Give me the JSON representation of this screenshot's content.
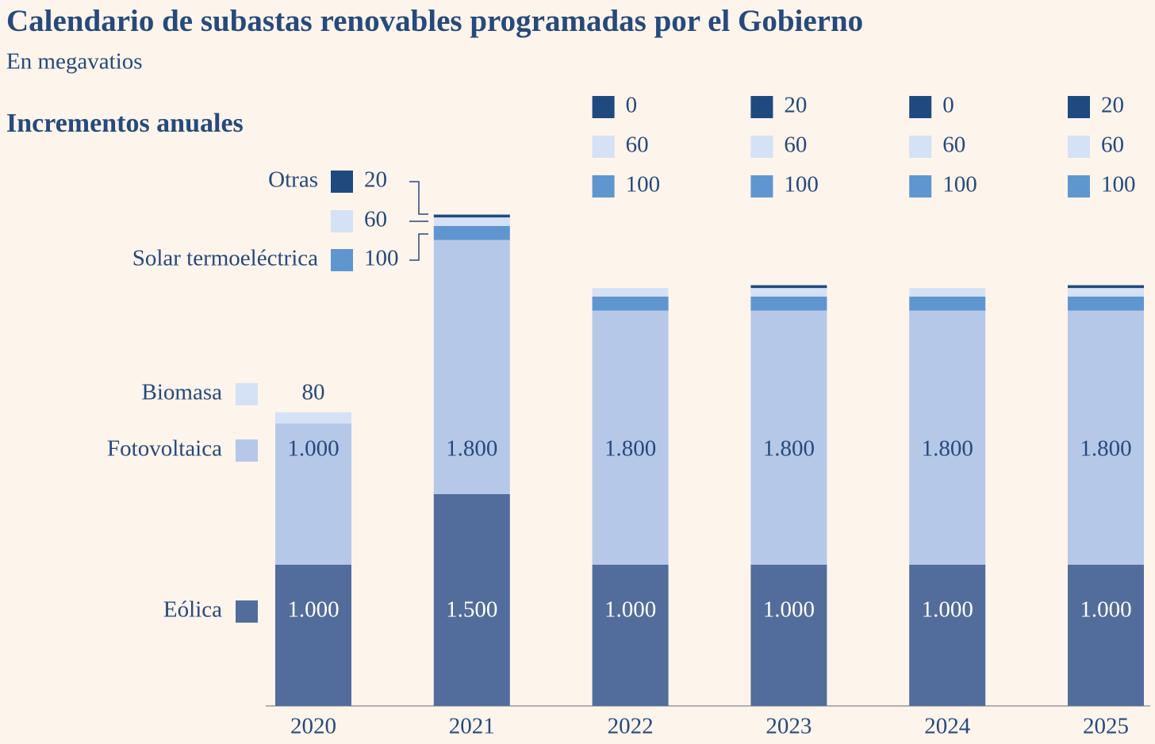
{
  "chart_data": {
    "type": "stacked_bar",
    "title": "Calendario de subastas renovables programadas por el Gobierno",
    "subtitle": "En megavatios",
    "section_label": "Incrementos anuales",
    "categories": [
      "2020",
      "2021",
      "2022",
      "2023",
      "2024",
      "2025"
    ],
    "ylim": [
      0,
      3500
    ],
    "series": [
      {
        "name": "Eólica",
        "color": "#526d9b",
        "values": [
          1000,
          1500,
          1000,
          1000,
          1000,
          1000
        ],
        "value_labels": [
          "1.000",
          "1.500",
          "1.000",
          "1.000",
          "1.000",
          "1.000"
        ]
      },
      {
        "name": "Fotovoltaica",
        "color": "#b6c8e8",
        "values": [
          1000,
          1800,
          1800,
          1800,
          1800,
          1800
        ],
        "value_labels": [
          "1.000",
          "1.800",
          "1.800",
          "1.800",
          "1.800",
          "1.800"
        ]
      },
      {
        "name": "Solar termoeléctrica",
        "color": "#5f96d0",
        "values": [
          0,
          100,
          100,
          100,
          100,
          100
        ]
      },
      {
        "name": "Biomasa",
        "color": "#d5e1f5",
        "values": [
          80,
          60,
          60,
          60,
          60,
          60
        ]
      },
      {
        "name": "Otras",
        "color": "#1f4a80",
        "values": [
          0,
          20,
          0,
          20,
          0,
          20
        ]
      }
    ]
  }
}
